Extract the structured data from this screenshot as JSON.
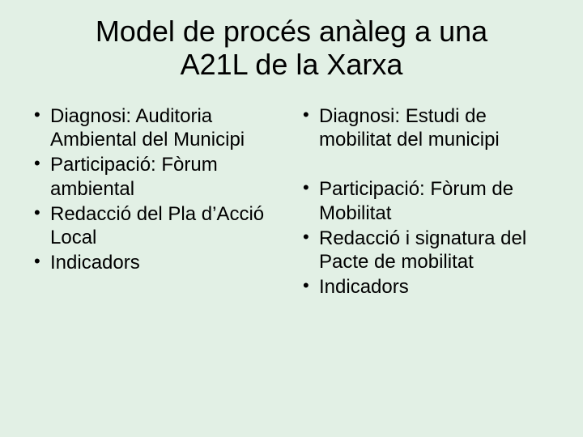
{
  "background_color": "#e2f0e5",
  "text_color": "#000000",
  "font_family": "Arial",
  "title": {
    "line1": "Model de procés anàleg a una",
    "line2": "A21L de la Xarxa",
    "fontsize": 36,
    "weight": "normal",
    "align": "center"
  },
  "body_fontsize": 24,
  "columns": [
    {
      "items": [
        "Diagnosi: Auditoria Ambiental del Municipi",
        "Participació: Fòrum ambiental",
        "Redacció del Pla d’Acció Local",
        "Indicadors"
      ]
    },
    {
      "group1": [
        "Diagnosi: Estudi de mobilitat del municipi"
      ],
      "group2": [
        "Participació: Fòrum de Mobilitat",
        "Redacció i signatura del Pacte de mobilitat",
        "Indicadors"
      ]
    }
  ]
}
